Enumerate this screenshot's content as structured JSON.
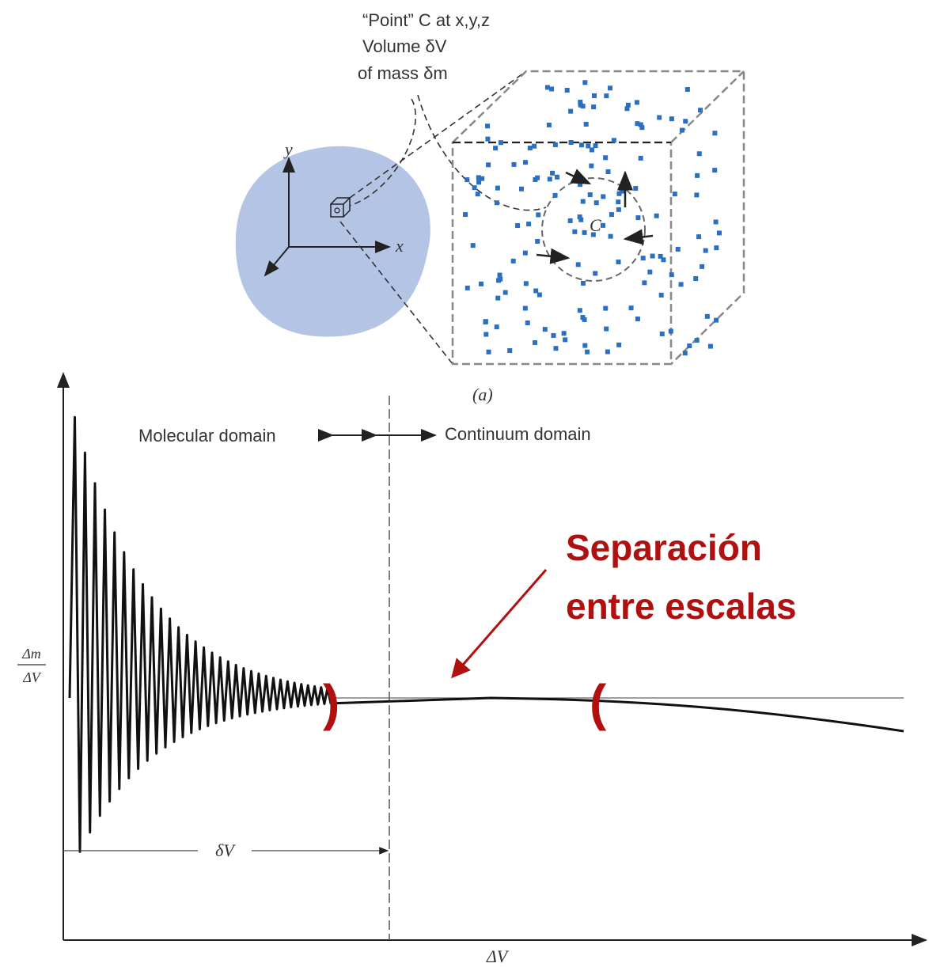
{
  "figure_a": {
    "label_lines": [
      "“Point” C at x,y,z",
      "Volume δV",
      "of mass δm"
    ],
    "axis_y": "y",
    "axis_x": "x",
    "point": "C",
    "caption": "(a)"
  },
  "figure_b": {
    "molecular": "Molecular domain",
    "continuum": "Continuum domain",
    "y_label": {
      "numerator": "Δm",
      "denominator": "ΔV"
    },
    "delta_v": "δV",
    "x_label": "ΔV"
  },
  "annotation": {
    "lines": [
      "Separación",
      "entre escalas"
    ],
    "left_bracket": ")",
    "right_bracket": "("
  }
}
